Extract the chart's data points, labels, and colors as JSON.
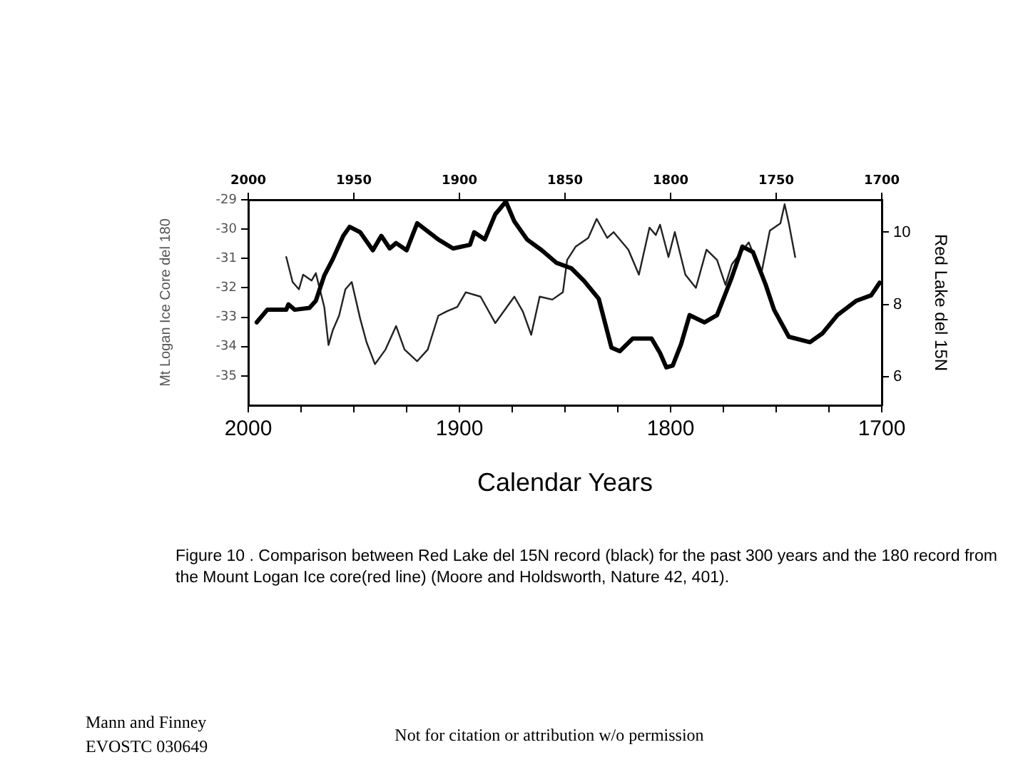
{
  "chart_data": {
    "type": "line",
    "xlabel": "Calendar Years",
    "ylabel": "Mt Logan Ice Core del 180",
    "y2label": "Red Lake del 15N",
    "xlim": [
      2000,
      1700
    ],
    "xticks": [
      2000,
      {
        "value": 1975,
        "label": null
      },
      {
        "value": 1950,
        "label": null
      },
      {
        "value": 1925,
        "label": null
      },
      1900,
      {
        "value": 1875,
        "label": null
      },
      {
        "value": 1850,
        "label": null
      },
      {
        "value": 1825,
        "label": null
      },
      1800,
      {
        "value": 1775,
        "label": null
      },
      {
        "value": 1750,
        "label": null
      },
      {
        "value": 1725,
        "label": null
      },
      1700
    ],
    "x2lim": [
      2000,
      1700
    ],
    "x2ticks": [
      2000,
      1950,
      1900,
      1850,
      1800,
      1750,
      1700
    ],
    "ylim": [
      -36,
      -29
    ],
    "yticks": [
      -29,
      -30,
      -31,
      -32,
      -33,
      -34,
      -35
    ],
    "y2lim": [
      5.2,
      10.9
    ],
    "y2ticks": [
      6,
      8,
      10
    ],
    "grid": false,
    "legend": false,
    "marker": "none",
    "line_style": "solid",
    "series": [
      {
        "color": "#000000",
        "axis": "y2",
        "x": [
          1996,
          1991,
          1982,
          1981,
          1978,
          1971,
          1968,
          1964,
          1960,
          1955,
          1952,
          1947,
          1941,
          1937,
          1933,
          1930,
          1925,
          1920,
          1910,
          1903,
          1895,
          1893,
          1888,
          1883,
          1878,
          1874,
          1868,
          1861,
          1854,
          1847,
          1841,
          1834,
          1828,
          1824,
          1818,
          1809,
          1805,
          1802,
          1799,
          1795,
          1791,
          1784,
          1778,
          1771,
          1766,
          1761,
          1755,
          1751,
          1744,
          1734,
          1728,
          1721,
          1712,
          1705,
          1701
        ],
        "values": [
          7.5,
          7.85,
          7.85,
          8.0,
          7.85,
          7.9,
          8.1,
          8.8,
          9.25,
          9.9,
          10.15,
          10.0,
          9.5,
          9.9,
          9.55,
          9.7,
          9.5,
          10.25,
          9.8,
          9.55,
          9.65,
          10.0,
          9.8,
          10.5,
          10.85,
          10.3,
          9.8,
          9.5,
          9.15,
          9.0,
          8.65,
          8.15,
          6.8,
          6.7,
          7.05,
          7.05,
          6.65,
          6.25,
          6.3,
          6.9,
          7.7,
          7.5,
          7.7,
          8.75,
          9.6,
          9.45,
          8.55,
          7.85,
          7.1,
          6.95,
          7.2,
          7.7,
          8.1,
          8.25,
          8.6
        ]
      },
      {
        "color": "#222222",
        "axis": "y",
        "x": [
          1982,
          1979,
          1976,
          1974,
          1970,
          1968,
          1964,
          1962,
          1960,
          1957,
          1954,
          1951,
          1947,
          1944,
          1940,
          1935,
          1930,
          1926,
          1920,
          1915,
          1910,
          1906,
          1901,
          1897,
          1890,
          1883,
          1874,
          1870,
          1866,
          1862,
          1856,
          1851,
          1849,
          1845,
          1839,
          1835,
          1830,
          1827,
          1820,
          1815,
          1810,
          1807,
          1805,
          1801,
          1798,
          1793,
          1788,
          1783,
          1778,
          1774,
          1771,
          1763,
          1757,
          1753,
          1748,
          1746,
          1744,
          1741
        ],
        "values": [
          -30.95,
          -31.8,
          -32.05,
          -31.55,
          -31.75,
          -31.5,
          -32.65,
          -33.95,
          -33.45,
          -32.95,
          -32.05,
          -31.8,
          -33.05,
          -33.85,
          -34.6,
          -34.1,
          -33.3,
          -34.1,
          -34.5,
          -34.1,
          -32.95,
          -32.8,
          -32.65,
          -32.15,
          -32.3,
          -33.2,
          -32.3,
          -32.8,
          -33.6,
          -32.3,
          -32.4,
          -32.15,
          -31.05,
          -30.6,
          -30.3,
          -29.65,
          -30.3,
          -30.1,
          -30.7,
          -31.55,
          -29.95,
          -30.2,
          -29.85,
          -30.95,
          -30.1,
          -31.55,
          -32.0,
          -30.7,
          -31.05,
          -31.9,
          -31.2,
          -30.45,
          -31.5,
          -30.05,
          -29.8,
          -29.15,
          -29.8,
          -30.95
        ]
      }
    ],
    "annotations": [
      "Figure 10 . Comparison between Red Lake del 15N record (black) for the past 300 years and the 180 record from the Mount Logan Ice core(red line)  (Moore and Holdsworth, Nature 42, 401).",
      "Mann and Finney",
      "EVOSTC 030649",
      "Not for citation or attribution w/o permission"
    ]
  }
}
